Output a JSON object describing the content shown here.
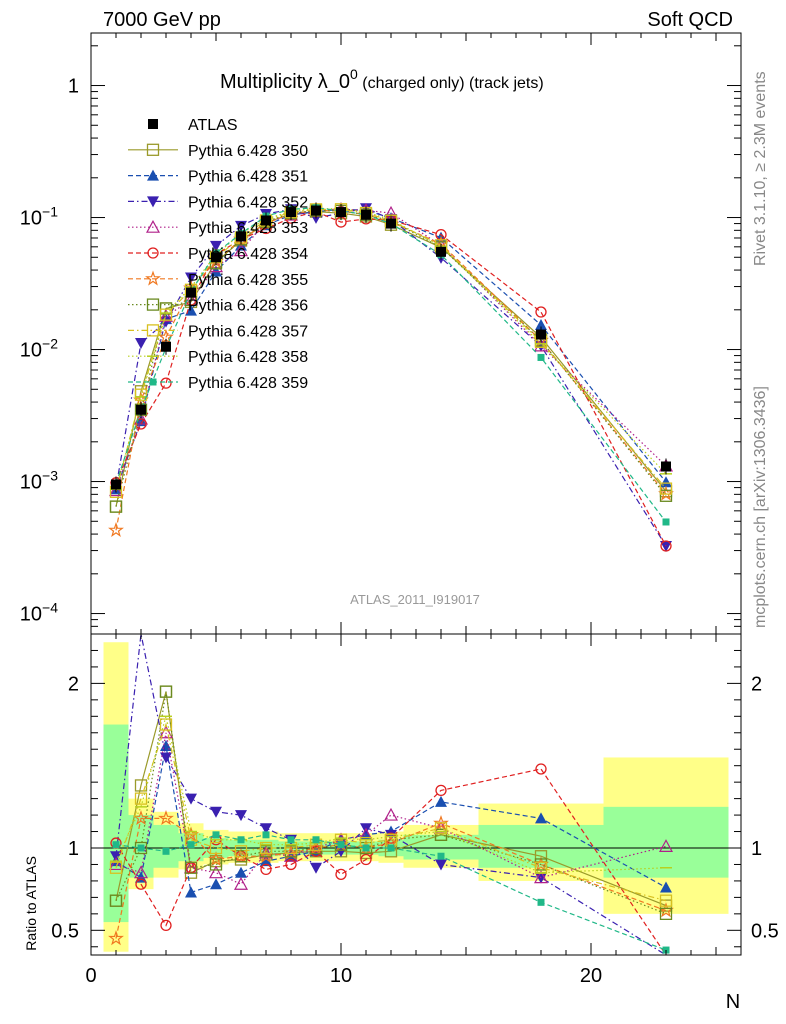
{
  "header": {
    "left": "7000 GeV pp",
    "right": "Soft QCD",
    "side_top": "Rivet 3.1.10, ≥ 2.3M events",
    "side_bottom": "mcplots.cern.ch [arXiv:1306.3436]"
  },
  "chart_data": [
    {
      "type": "line",
      "panel": "main",
      "title_main": "Multiplicity λ_0",
      "title_sup": "0",
      "title_sub": " (charged only) (track jets)",
      "watermark": "ATLAS_2011_I919017",
      "yscale": "log",
      "ylim": [
        7e-05,
        2.5
      ],
      "xlim": [
        0,
        26
      ],
      "ytick_labels": [
        "10^-4",
        "10^-3",
        "10^-2",
        "10^-1",
        "1"
      ],
      "data_series": {
        "name": "ATLAS",
        "x": [
          1,
          2,
          3,
          4,
          5,
          6,
          7,
          8,
          9,
          10,
          11,
          12,
          14,
          18,
          23
        ],
        "y": [
          0.00095,
          0.0035,
          0.0105,
          0.027,
          0.05,
          0.072,
          0.095,
          0.11,
          0.113,
          0.11,
          0.105,
          0.09,
          0.055,
          0.013,
          0.0013
        ]
      },
      "series": [
        {
          "name": "Pythia 6.428 350",
          "color": "#9a9a2a",
          "marker": "open-square",
          "dash": "solid",
          "ratio": [
            0.68,
            1.38,
            1.95,
            0.85,
            0.92,
            0.93,
            0.96,
            0.97,
            0.98,
            0.98,
            0.97,
            0.98,
            1.08,
            0.95,
            0.65
          ]
        },
        {
          "name": "Pythia 6.428 351",
          "color": "#1a4fb0",
          "marker": "filled-triangle-up",
          "dash": "dashed",
          "ratio": [
            0.92,
            0.82,
            1.62,
            0.73,
            0.78,
            0.85,
            0.92,
            0.95,
            0.98,
            1.05,
            1.08,
            1.1,
            1.28,
            1.18,
            0.76
          ]
        },
        {
          "name": "Pythia 6.428 352",
          "color": "#3a20b0",
          "marker": "filled-triangle-down",
          "dash": "dash-dot",
          "ratio": [
            0.95,
            3.2,
            1.55,
            1.3,
            1.22,
            1.2,
            1.12,
            1.05,
            0.88,
            0.98,
            1.12,
            1.08,
            0.9,
            0.82,
            0.25
          ]
        },
        {
          "name": "Pythia 6.428 353",
          "color": "#b0208a",
          "marker": "open-triangle-up",
          "dash": "dotted",
          "ratio": [
            0.9,
            0.85,
            1.7,
            0.88,
            0.85,
            0.78,
            0.97,
            0.95,
            1.0,
            1.05,
            1.08,
            1.2,
            1.12,
            0.82,
            1.01
          ]
        },
        {
          "name": "Pythia 6.428 354",
          "color": "#e02020",
          "marker": "open-circle",
          "dash": "dashed",
          "ratio": [
            1.03,
            0.78,
            0.53,
            0.88,
            1.05,
            0.95,
            0.87,
            0.9,
            0.98,
            0.84,
            0.93,
            1.06,
            1.35,
            1.48,
            0.25
          ]
        },
        {
          "name": "Pythia 6.428 355",
          "color": "#f07820",
          "marker": "open-star",
          "dash": "dashed",
          "ratio": [
            0.45,
            1.18,
            1.18,
            1.08,
            0.93,
            0.95,
            0.95,
            0.97,
            1.0,
            1.02,
            1.0,
            1.03,
            1.15,
            0.9,
            0.62
          ]
        },
        {
          "name": "Pythia 6.428 356",
          "color": "#6a8a20",
          "marker": "open-square",
          "dash": "dotted",
          "ratio": [
            0.68,
            1.0,
            1.95,
            0.88,
            0.9,
            0.95,
            0.98,
            0.98,
            1.0,
            1.02,
            1.0,
            1.05,
            1.08,
            0.9,
            0.6
          ]
        },
        {
          "name": "Pythia 6.428 357",
          "color": "#d8c020",
          "marker": "open-square",
          "dash": "dash-dot",
          "ratio": [
            0.88,
            1.3,
            1.75,
            1.05,
            1.0,
            0.98,
            1.0,
            1.0,
            1.02,
            1.05,
            1.03,
            1.05,
            1.12,
            0.88,
            0.68
          ]
        },
        {
          "name": "Pythia 6.428 358",
          "color": "#b8d020",
          "marker": "none",
          "dash": "dotted",
          "ratio": [
            0.92,
            1.25,
            1.8,
            1.1,
            1.05,
            1.05,
            1.02,
            1.02,
            1.03,
            1.06,
            1.05,
            1.07,
            1.1,
            0.85,
            0.88
          ]
        },
        {
          "name": "Pythia 6.428 359",
          "color": "#20b888",
          "marker": "filled-square",
          "dash": "dashed",
          "ratio": [
            1.02,
            1.0,
            0.98,
            1.02,
            1.08,
            1.05,
            1.08,
            1.05,
            1.05,
            1.02,
            1.0,
            1.0,
            0.95,
            0.67,
            0.38
          ]
        }
      ],
      "legend_placement": "top-left"
    },
    {
      "type": "line",
      "panel": "ratio",
      "ylabel": "Ratio to ATLAS",
      "xlabel": "N",
      "xlim": [
        0,
        26
      ],
      "ylim": [
        0.35,
        2.3
      ],
      "xtick_labels": [
        "0",
        "10",
        "20"
      ],
      "ytick_labels": [
        "0.5",
        "1",
        "2"
      ],
      "band_bins": [
        [
          0.5,
          1.5
        ],
        [
          1.5,
          2.5
        ],
        [
          2.5,
          3.5
        ],
        [
          3.5,
          4.5
        ],
        [
          4.5,
          5.5
        ],
        [
          5.5,
          6.5
        ],
        [
          6.5,
          7.5
        ],
        [
          7.5,
          8.5
        ],
        [
          8.5,
          9.5
        ],
        [
          9.5,
          10.5
        ],
        [
          10.5,
          11.5
        ],
        [
          11.5,
          12.5
        ],
        [
          12.5,
          15.5
        ],
        [
          15.5,
          20.5
        ],
        [
          20.5,
          25.5
        ]
      ],
      "band_green": [
        [
          0.55,
          1.75
        ],
        [
          0.82,
          1.2
        ],
        [
          0.88,
          1.14
        ],
        [
          0.92,
          1.09
        ],
        [
          0.94,
          1.06
        ],
        [
          0.95,
          1.05
        ],
        [
          0.95,
          1.05
        ],
        [
          0.96,
          1.04
        ],
        [
          0.96,
          1.04
        ],
        [
          0.96,
          1.04
        ],
        [
          0.96,
          1.04
        ],
        [
          0.95,
          1.05
        ],
        [
          0.93,
          1.08
        ],
        [
          0.88,
          1.14
        ],
        [
          0.82,
          1.25
        ]
      ],
      "band_yellow": [
        [
          0.37,
          2.25
        ],
        [
          0.75,
          1.3
        ],
        [
          0.82,
          1.22
        ],
        [
          0.87,
          1.15
        ],
        [
          0.9,
          1.11
        ],
        [
          0.91,
          1.1
        ],
        [
          0.91,
          1.1
        ],
        [
          0.92,
          1.09
        ],
        [
          0.92,
          1.09
        ],
        [
          0.92,
          1.09
        ],
        [
          0.92,
          1.09
        ],
        [
          0.91,
          1.1
        ],
        [
          0.88,
          1.14
        ],
        [
          0.8,
          1.27
        ],
        [
          0.6,
          1.55
        ]
      ],
      "band_colors": {
        "green": "#99ff99",
        "yellow": "#ffff88"
      }
    }
  ]
}
